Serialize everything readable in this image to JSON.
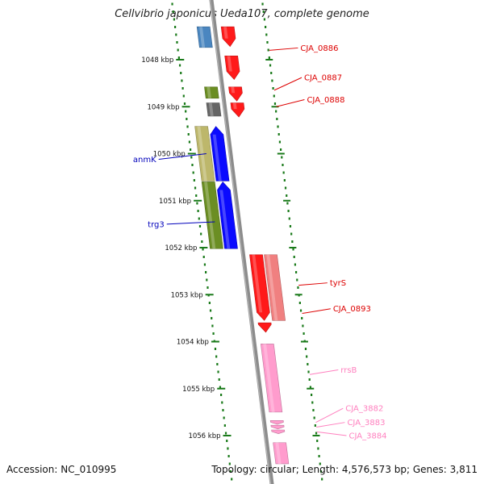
{
  "title": "Cellvibrio japonicus Ueda107, complete genome",
  "accession_text": "Accession: NC_010995",
  "summary_text": "Topology: circular; Length: 4,576,573 bp; Genes: 3,811",
  "colors": {
    "backbone": "#8c8c8c",
    "tick": "#1a7a1a",
    "red": "#ff1a1a",
    "blue": "#0a0aff",
    "steelblue": "#4a86c0",
    "olive": "#6b8e23",
    "khaki": "#bdb76b",
    "gray": "#666666",
    "salmon": "#f08080",
    "pink": "#ff9ccd",
    "label_red": "#dd0000",
    "label_blue": "#0000bb",
    "label_pink": "#ff80bf"
  },
  "scale": {
    "unit": "kbp",
    "ticks": [
      {
        "kbp": 1048,
        "label": "1048 kbp"
      },
      {
        "kbp": 1049,
        "label": "1049 kbp"
      },
      {
        "kbp": 1050,
        "label": "1050 kbp"
      },
      {
        "kbp": 1051,
        "label": "1051 kbp"
      },
      {
        "kbp": 1052,
        "label": "1052 kbp"
      },
      {
        "kbp": 1053,
        "label": "1053 kbp"
      },
      {
        "kbp": 1054,
        "label": "1054 kbp"
      },
      {
        "kbp": 1055,
        "label": "1055 kbp"
      },
      {
        "kbp": 1056,
        "label": "1056 kbp"
      }
    ]
  },
  "features": [
    {
      "name": "",
      "strand": "forward",
      "lane": 1,
      "start": 1047.3,
      "end": 1047.72,
      "color": "red",
      "arrow": true
    },
    {
      "name": "",
      "strand": "reverse",
      "lane": 1,
      "start": 1047.3,
      "end": 1047.74,
      "color": "steelblue",
      "arrow": false
    },
    {
      "name": "CJA_0886",
      "strand": "forward",
      "lane": 1,
      "start": 1047.92,
      "end": 1048.42,
      "color": "red",
      "arrow": true
    },
    {
      "name": "CJA_0887",
      "strand": "forward",
      "lane": 1,
      "start": 1048.58,
      "end": 1048.88,
      "color": "red",
      "arrow": true
    },
    {
      "name": "",
      "strand": "reverse",
      "lane": 1,
      "start": 1048.58,
      "end": 1048.82,
      "color": "olive",
      "arrow": false
    },
    {
      "name": "CJA_0888",
      "strand": "forward",
      "lane": 1,
      "start": 1048.92,
      "end": 1049.22,
      "color": "red",
      "arrow": true
    },
    {
      "name": "",
      "strand": "reverse",
      "lane": 1,
      "start": 1048.92,
      "end": 1049.2,
      "color": "gray",
      "arrow": false
    },
    {
      "name": "anmK",
      "strand": "reverse",
      "lane": 2,
      "start": 1049.42,
      "end": 1050.58,
      "color": "khaki",
      "arrow": false
    },
    {
      "name": "",
      "strand": "reverse",
      "lane": 1,
      "start": 1049.42,
      "end": 1050.58,
      "color": "blue",
      "arrow": true
    },
    {
      "name": "trg3",
      "strand": "reverse",
      "lane": 2,
      "start": 1050.6,
      "end": 1052.02,
      "color": "olive",
      "arrow": false
    },
    {
      "name": "",
      "strand": "reverse",
      "lane": 1,
      "start": 1050.6,
      "end": 1052.02,
      "color": "blue",
      "arrow": true
    },
    {
      "name": "",
      "strand": "forward",
      "lane": 1,
      "start": 1052.15,
      "end": 1053.55,
      "color": "red",
      "arrow": true
    },
    {
      "name": "tyrS",
      "strand": "forward",
      "lane": 2,
      "start": 1052.15,
      "end": 1053.55,
      "color": "salmon",
      "arrow": false
    },
    {
      "name": "CJA_0893",
      "strand": "forward",
      "lane": 1,
      "start": 1053.6,
      "end": 1053.8,
      "color": "red",
      "arrow": true
    },
    {
      "name": "rrsB",
      "strand": "forward",
      "lane": 1,
      "start": 1054.05,
      "end": 1055.5,
      "color": "pink",
      "arrow": false
    },
    {
      "name": "CJA_3882",
      "strand": "forward",
      "lane": 1,
      "start": 1055.68,
      "end": 1055.76,
      "color": "pink",
      "arrow": true
    },
    {
      "name": "CJA_3883",
      "strand": "forward",
      "lane": 1,
      "start": 1055.78,
      "end": 1055.86,
      "color": "pink",
      "arrow": true
    },
    {
      "name": "CJA_3884",
      "strand": "forward",
      "lane": 1,
      "start": 1055.88,
      "end": 1055.96,
      "color": "pink",
      "arrow": true
    },
    {
      "name": "",
      "strand": "forward",
      "lane": 1,
      "start": 1056.15,
      "end": 1056.6,
      "color": "pink",
      "arrow": false
    }
  ],
  "feature_labels": [
    {
      "text": "CJA_0886",
      "side": "right",
      "kbp": 1047.8,
      "label_kbp": 1047.75,
      "color": "label_red"
    },
    {
      "text": "CJA_0887",
      "side": "right",
      "kbp": 1048.65,
      "label_kbp": 1048.38,
      "color": "label_red"
    },
    {
      "text": "CJA_0888",
      "side": "right",
      "kbp": 1049.0,
      "label_kbp": 1048.85,
      "color": "label_red"
    },
    {
      "text": "anmK",
      "side": "left",
      "kbp": 1050.0,
      "label_kbp": 1050.12,
      "color": "label_blue"
    },
    {
      "text": "trg3",
      "side": "left",
      "kbp": 1051.45,
      "label_kbp": 1051.5,
      "color": "label_blue"
    },
    {
      "text": "tyrS",
      "side": "right",
      "kbp": 1052.8,
      "label_kbp": 1052.75,
      "color": "label_red"
    },
    {
      "text": "CJA_0893",
      "side": "right",
      "kbp": 1053.4,
      "label_kbp": 1053.3,
      "color": "label_red"
    },
    {
      "text": "rrsB",
      "side": "right",
      "kbp": 1054.7,
      "label_kbp": 1054.6,
      "color": "label_pink"
    },
    {
      "text": "CJA_3882",
      "side": "right",
      "kbp": 1055.72,
      "label_kbp": 1055.42,
      "color": "label_pink"
    },
    {
      "text": "CJA_3883",
      "side": "right",
      "kbp": 1055.82,
      "label_kbp": 1055.72,
      "color": "label_pink"
    },
    {
      "text": "CJA_3884",
      "side": "right",
      "kbp": 1055.92,
      "label_kbp": 1056.0,
      "color": "label_pink"
    }
  ]
}
